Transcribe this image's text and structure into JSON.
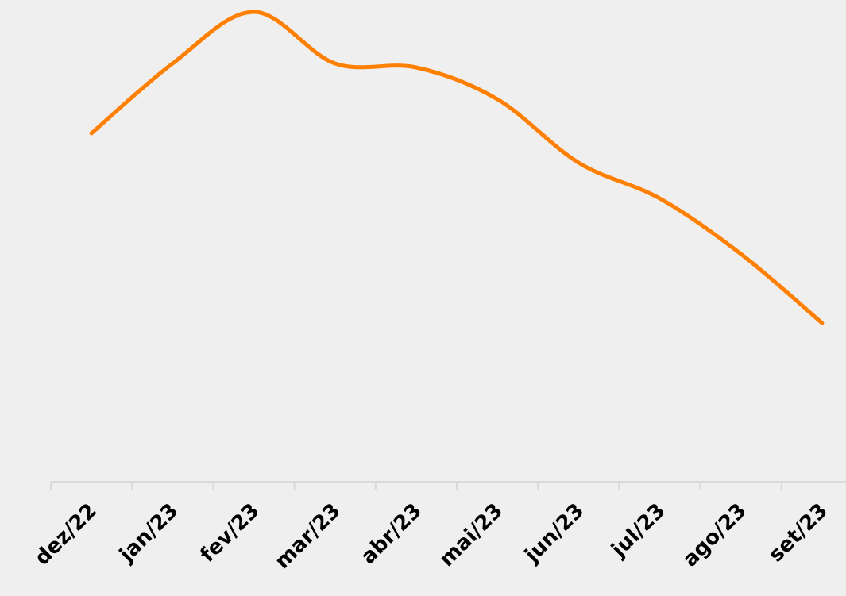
{
  "chart_data": {
    "type": "line",
    "categories": [
      "dez/22",
      "jan/23",
      "fev/23",
      "mar/23",
      "abr/23",
      "mai/23",
      "jun/23",
      "jul/23",
      "ago/23",
      "set/23"
    ],
    "series": [
      {
        "name": null,
        "color": "#ff8000",
        "values": [
          439,
          527,
          592,
          527,
          522,
          482,
          402,
          357,
          287,
          200
        ]
      }
    ],
    "ylim": [
      0,
      607
    ]
  }
}
